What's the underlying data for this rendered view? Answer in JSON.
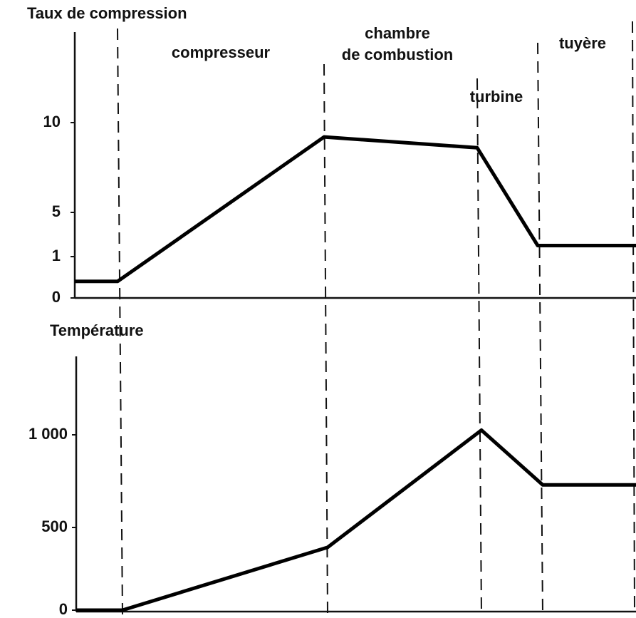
{
  "chart_data": [
    {
      "type": "line",
      "title": "Taux de compression",
      "categories": [
        null,
        null,
        null,
        null,
        null,
        null
      ],
      "values": [
        0.4,
        0.4,
        9.2,
        8.6,
        2,
        2
      ],
      "color": "#000000",
      "ylim": [
        0,
        15
      ],
      "yticks": [
        0,
        1,
        5,
        10
      ],
      "annotations": [
        "compresseur",
        "chambre",
        "de combustion",
        "turbine",
        "tuyère"
      ]
    },
    {
      "type": "line",
      "title": "Température",
      "categories": [
        null,
        null,
        null,
        null,
        null,
        null
      ],
      "values": [
        0,
        0,
        380,
        1020,
        730,
        730
      ],
      "color": "#000000",
      "ylim": [
        0,
        1400
      ],
      "yticks": [
        0,
        500,
        {
          "value": 1000,
          "label": "1 000"
        }
      ]
    }
  ]
}
